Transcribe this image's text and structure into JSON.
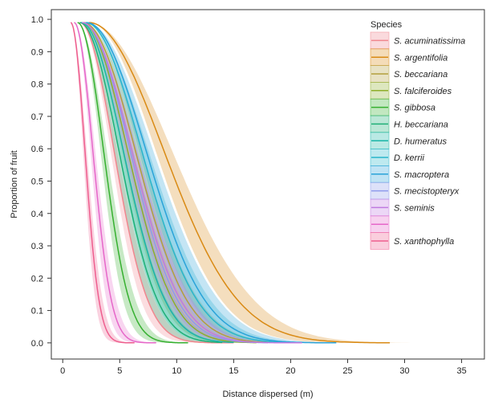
{
  "chart_data": {
    "type": "line",
    "xlabel": "Distance dispersed (m)",
    "ylabel": "Proportion of fruit",
    "xlim": [
      -1,
      37
    ],
    "ylim": [
      -0.05,
      1.03
    ],
    "xticks": [
      0,
      5,
      10,
      15,
      20,
      25,
      30,
      35
    ],
    "yticks": [
      0.0,
      0.1,
      0.2,
      0.3,
      0.4,
      0.5,
      0.6,
      0.7,
      0.8,
      0.9,
      1.0
    ],
    "grid": false,
    "legend_title": "Species",
    "legend_position": "top-right",
    "series": [
      {
        "name": "S. acuminatissima",
        "color": "#f0868e",
        "x_start": 1.5,
        "x_end": 15.0,
        "scale": 4.2,
        "band": 0.1
      },
      {
        "name": "S. argentifolia",
        "color": "#d98a14",
        "x_start": 2.3,
        "x_end": 28.7,
        "scale": 9.2,
        "band": 0.11
      },
      {
        "name": "S. beccariana",
        "color": "#b3a03c",
        "x_start": 1.8,
        "x_end": 18.0,
        "scale": 6.4,
        "band": 0.12
      },
      {
        "name": "S. falciferoides",
        "color": "#8fae2a",
        "x_start": 1.7,
        "x_end": 17.0,
        "scale": 5.6,
        "band": 0.12
      },
      {
        "name": "S. gibbosa",
        "color": "#36b030",
        "x_start": 1.3,
        "x_end": 11.0,
        "scale": 3.2,
        "band": 0.12
      },
      {
        "name": "H. beccariana",
        "color": "#1fb077",
        "x_start": 1.5,
        "x_end": 14.0,
        "scale": 4.8,
        "band": 0.12
      },
      {
        "name": "D. humeratus",
        "color": "#1ab5a7",
        "x_start": 1.6,
        "x_end": 15.0,
        "scale": 5.2,
        "band": 0.12
      },
      {
        "name": "D. kerrii",
        "color": "#29b6cb",
        "x_start": 2.0,
        "x_end": 20.0,
        "scale": 6.9,
        "band": 0.12
      },
      {
        "name": "S. macroptera",
        "color": "#2aa3d9",
        "x_start": 2.1,
        "x_end": 24.0,
        "scale": 7.3,
        "band": 0.12
      },
      {
        "name": "S. mecistopteryx",
        "color": "#8e9bec",
        "x_start": 1.7,
        "x_end": 18.0,
        "scale": 5.9,
        "band": 0.14
      },
      {
        "name": "S. seminis",
        "color": "#bf7ae0",
        "x_start": 1.7,
        "x_end": 21.0,
        "scale": 6.1,
        "band": 0.12
      },
      {
        "name": "",
        "color": "#e667c9",
        "x_start": 1.0,
        "x_end": 8.2,
        "scale": 2.3,
        "band": 0.13
      },
      {
        "name": "S. xanthophylla",
        "color": "#ee5e8e",
        "x_start": 0.7,
        "x_end": 6.3,
        "scale": 1.75,
        "band": 0.13
      }
    ]
  }
}
